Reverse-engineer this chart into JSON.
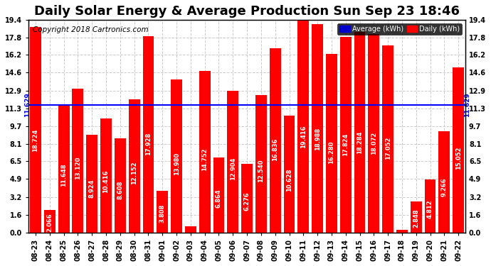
{
  "title": "Daily Solar Energy & Average Production Sun Sep 23 18:46",
  "copyright": "Copyright 2018 Cartronics.com",
  "categories": [
    "08-23",
    "08-24",
    "08-25",
    "08-26",
    "08-27",
    "08-28",
    "08-29",
    "08-30",
    "08-31",
    "09-01",
    "09-02",
    "09-03",
    "09-04",
    "09-05",
    "09-06",
    "09-07",
    "09-08",
    "09-09",
    "09-10",
    "09-11",
    "09-12",
    "09-13",
    "09-14",
    "09-15",
    "09-16",
    "09-17",
    "09-18",
    "09-19",
    "09-20",
    "09-21",
    "09-22"
  ],
  "values": [
    18.724,
    2.066,
    11.648,
    13.12,
    8.924,
    10.416,
    8.608,
    12.152,
    17.928,
    3.808,
    13.98,
    0.572,
    14.752,
    6.864,
    12.904,
    6.276,
    12.54,
    16.836,
    10.628,
    19.416,
    18.988,
    16.28,
    17.824,
    18.284,
    18.072,
    17.052,
    0.264,
    2.848,
    4.812,
    9.266,
    15.052
  ],
  "average": 11.629,
  "bar_color": "#ff0000",
  "average_color": "#0000ff",
  "bar_label_color": "#ffffff",
  "background_color": "#ffffff",
  "grid_color": "#cccccc",
  "ylim": [
    0,
    19.4
  ],
  "yticks": [
    0.0,
    1.6,
    3.2,
    4.9,
    6.5,
    8.1,
    9.7,
    11.3,
    12.9,
    14.6,
    16.2,
    17.8,
    19.4
  ],
  "title_fontsize": 13,
  "copyright_fontsize": 7.5,
  "bar_label_fontsize": 6.0,
  "avg_label": "11.629",
  "legend_avg_label": "Average (kWh)",
  "legend_daily_label": "Daily (kWh)",
  "legend_avg_bg": "#0000cd",
  "legend_daily_bg": "#ff0000"
}
